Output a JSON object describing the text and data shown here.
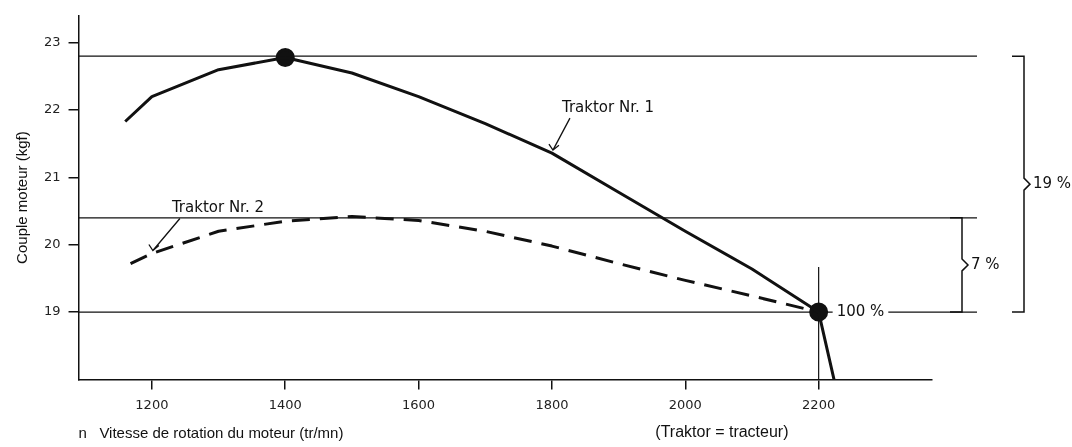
{
  "chart_data": {
    "type": "line",
    "xlabel": "n   Vitesse de rotation du moteur (tr/mn)",
    "ylabel": "Couple moteur (kgf)",
    "xlim": [
      1090,
      2370
    ],
    "xticks": [
      1200,
      1400,
      1600,
      1800,
      2000,
      2200
    ],
    "ylim": [
      18,
      23.4
    ],
    "yticks": [
      19,
      20,
      21,
      22,
      23
    ],
    "grid": false,
    "legend": false,
    "marker": "none",
    "series": [
      {
        "name": "Traktor Nr. 1",
        "color": "#111111",
        "line_style": "solid",
        "x": [
          1160,
          1200,
          1300,
          1400,
          1500,
          1600,
          1700,
          1800,
          1900,
          2000,
          2100,
          2200,
          2223
        ],
        "values": [
          21.83,
          22.2,
          22.6,
          22.78,
          22.55,
          22.2,
          21.8,
          21.36,
          20.78,
          20.2,
          19.64,
          19.0,
          18.0
        ]
      },
      {
        "name": "Traktor Nr. 2",
        "color": "#111111",
        "line_style": "dashed",
        "x": [
          1168,
          1200,
          1300,
          1400,
          1500,
          1600,
          1700,
          1800,
          1900,
          2000,
          2100,
          2200
        ],
        "values": [
          19.72,
          19.87,
          20.2,
          20.35,
          20.42,
          20.36,
          20.2,
          19.98,
          19.72,
          19.47,
          19.24,
          19.0
        ]
      },
      {
        "type": "scatter",
        "color": "#111111",
        "marker": "circle",
        "x": [
          1400,
          2200
        ],
        "values": [
          22.78,
          19.0
        ]
      }
    ],
    "ref_lines": [
      {
        "axis": "y",
        "value": 22.8
      },
      {
        "axis": "y",
        "value": 20.4
      },
      {
        "axis": "y",
        "value": 19
      },
      {
        "axis": "x",
        "value": 2200
      }
    ],
    "annotations": [
      "19 %",
      "7 %",
      {
        "text": "100 %",
        "x": 2200,
        "y": 19
      },
      "(Traktor = tracteur)"
    ]
  }
}
